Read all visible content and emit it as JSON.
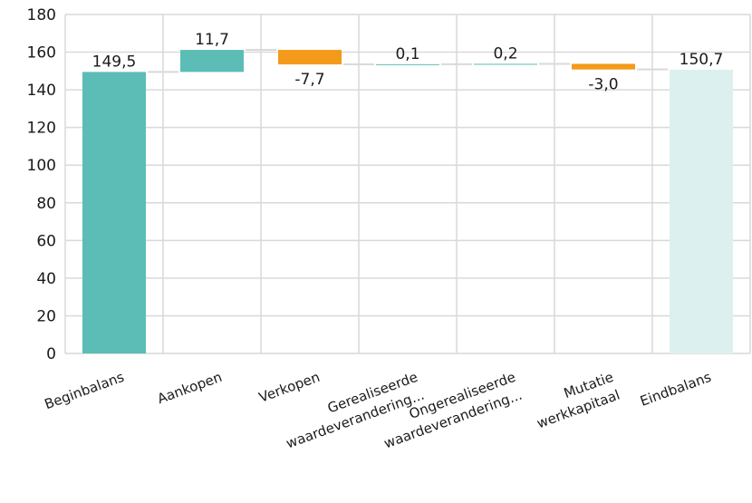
{
  "chart_data": {
    "type": "bar",
    "subtype": "waterfall",
    "title": "",
    "xlabel": "",
    "ylabel": "",
    "ylim": [
      0,
      180
    ],
    "yticks": [
      0,
      20,
      40,
      60,
      80,
      100,
      120,
      140,
      160,
      180
    ],
    "ytick_labels": [
      "0",
      "20",
      "40",
      "60",
      "80",
      "100",
      "120",
      "140",
      "160",
      "180"
    ],
    "grid": true,
    "legend": "none",
    "categories": [
      {
        "label": [
          "Beginbalans"
        ]
      },
      {
        "label": [
          "Aankopen"
        ]
      },
      {
        "label": [
          "Verkopen"
        ]
      },
      {
        "label": [
          "Gerealiseerde",
          "waardeverandering..."
        ]
      },
      {
        "label": [
          "Ongerealiseerde",
          "waardeverandering..."
        ]
      },
      {
        "label": [
          "Mutatie",
          "werkkapitaal"
        ]
      },
      {
        "label": [
          "Eindbalans"
        ]
      }
    ],
    "values": [
      149.5,
      11.7,
      -7.7,
      0.1,
      0.2,
      -3.0,
      150.7
    ],
    "value_labels": [
      "149,5",
      "11,7",
      "-7,7",
      "0,1",
      "0,2",
      "-3,0",
      "150,7"
    ],
    "kinds": [
      "total",
      "delta",
      "delta",
      "delta",
      "delta",
      "delta",
      "total"
    ],
    "colors": {
      "begin_total": "#5bbdb6",
      "increase": "#5bbdb6",
      "decrease": "#f39a1a",
      "end_total": "#dcf1ef",
      "grid": "#d9d9d9",
      "connector": "#d9d9d9"
    }
  }
}
